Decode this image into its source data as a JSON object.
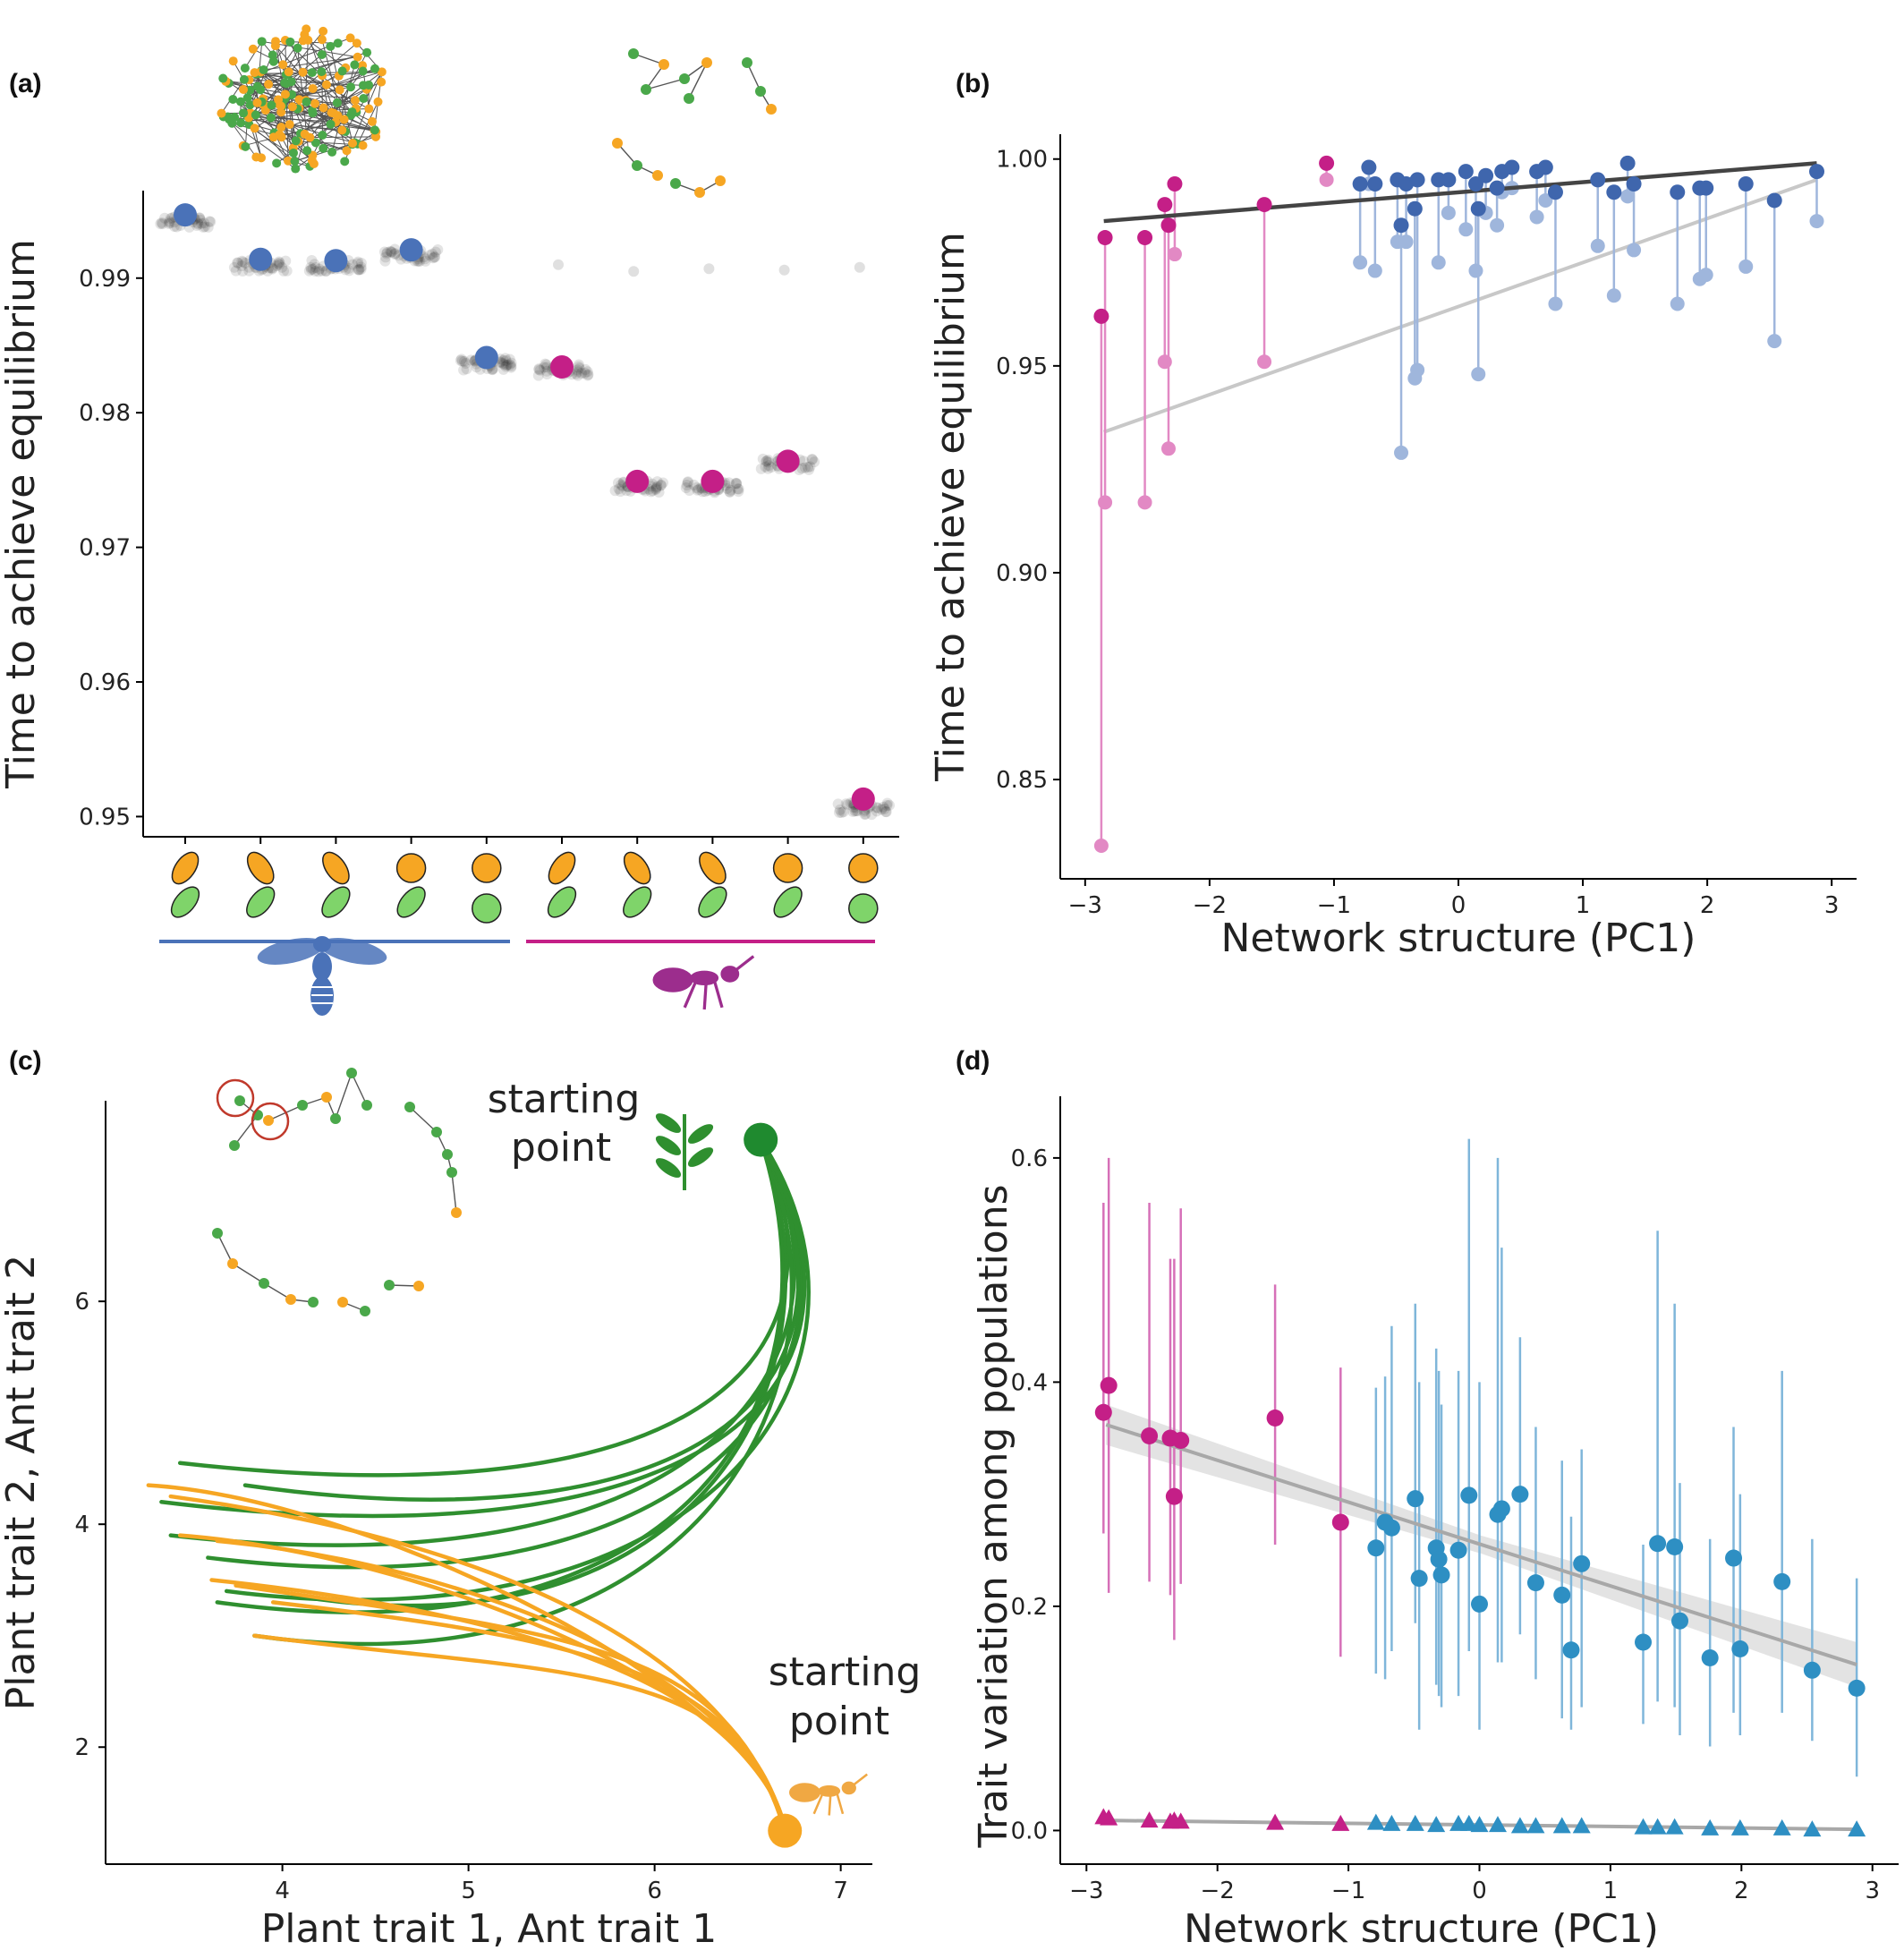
{
  "colors": {
    "bee": "#4a72b8",
    "ant": "#c41f87",
    "bee_light": "#9fb6dc",
    "ant_light": "#e289c4",
    "teal": "#2e8fc3",
    "plant": "#2f8f2f",
    "plant_light": "#7fd46a",
    "orange": "#f6a623",
    "fit_dark": "#444444",
    "fit_light": "#c8c8c8"
  },
  "chart_data": [
    {
      "panel": "(a)",
      "type": "scatter",
      "title": "",
      "xlabel": "",
      "ylabel": "Time to achieve equilibrium",
      "ylim": [
        0.9485,
        0.9965
      ],
      "yticks": [
        0.95,
        0.96,
        0.97,
        0.98,
        0.99
      ],
      "ytick_labels": [
        "0.95",
        "0.96",
        "0.97",
        "0.98",
        "0.99"
      ],
      "categories": [
        "1",
        "2",
        "3",
        "4",
        "5",
        "6",
        "7",
        "8",
        "9",
        "10"
      ],
      "groups": [
        {
          "name": "bee",
          "icon": "bee-icon",
          "categories": [
            "1",
            "2",
            "3",
            "4",
            "5"
          ]
        },
        {
          "name": "ant",
          "icon": "ant-icon",
          "categories": [
            "6",
            "7",
            "8",
            "9",
            "10"
          ]
        }
      ],
      "trait_icons": [
        {
          "top": "ellipse",
          "bottom": "ellipse"
        },
        {
          "top": "ellipse",
          "bottom": "ellipse"
        },
        {
          "top": "ellipse",
          "bottom": "ellipse"
        },
        {
          "top": "circle",
          "bottom": "ellipse"
        },
        {
          "top": "circle",
          "bottom": "circle"
        },
        {
          "top": "ellipse",
          "bottom": "ellipse"
        },
        {
          "top": "ellipse",
          "bottom": "ellipse"
        },
        {
          "top": "ellipse",
          "bottom": "ellipse"
        },
        {
          "top": "circle",
          "bottom": "ellipse"
        },
        {
          "top": "circle",
          "bottom": "circle"
        }
      ],
      "series": [
        {
          "group": "bee",
          "values": [
            0.9947,
            0.9914,
            0.9913,
            0.9921,
            0.9841
          ]
        },
        {
          "group": "ant",
          "values": [
            0.9834,
            0.9749,
            0.9749,
            0.9764,
            0.9513
          ]
        }
      ],
      "replicate_means": [
        0.9942,
        0.9909,
        0.9909,
        0.9917,
        0.9836,
        0.9832,
        0.9745,
        0.9745,
        0.9762,
        0.9506
      ],
      "faint_points": [
        {
          "cat": 6,
          "y": 0.991
        },
        {
          "cat": 7,
          "y": 0.9905
        },
        {
          "cat": 8,
          "y": 0.9907
        },
        {
          "cat": 9,
          "y": 0.9906
        },
        {
          "cat": 10,
          "y": 0.9908
        }
      ]
    },
    {
      "panel": "(b)",
      "type": "scatter",
      "title": "",
      "xlabel": "Network structure (PC1)",
      "ylabel": "Time to achieve equilibrium",
      "xlim": [
        -3.2,
        3.2
      ],
      "ylim": [
        0.826,
        1.006
      ],
      "xticks": [
        -3,
        -2,
        -1,
        0,
        1,
        2,
        3
      ],
      "xtick_labels": [
        "−3",
        "−2",
        "−1",
        "0",
        "1",
        "2",
        "3"
      ],
      "yticks": [
        0.85,
        0.9,
        0.95,
        1.0
      ],
      "ytick_labels": [
        "0.85",
        "0.90",
        "0.95",
        "1.00"
      ],
      "fits": [
        {
          "name": "dark",
          "x": [
            -2.85,
            2.88
          ],
          "y": [
            0.985,
            0.999
          ]
        },
        {
          "name": "light",
          "x": [
            -2.85,
            2.88
          ],
          "y": [
            0.934,
            0.995
          ]
        }
      ],
      "points": [
        {
          "x": -2.87,
          "hi": 0.962,
          "lo": 0.834,
          "g": "ant"
        },
        {
          "x": -2.84,
          "hi": 0.981,
          "lo": 0.917,
          "g": "ant"
        },
        {
          "x": -2.52,
          "hi": 0.981,
          "lo": 0.917,
          "g": "ant"
        },
        {
          "x": -2.36,
          "hi": 0.989,
          "lo": 0.951,
          "g": "ant"
        },
        {
          "x": -2.33,
          "hi": 0.984,
          "lo": 0.93,
          "g": "ant"
        },
        {
          "x": -2.28,
          "hi": 0.994,
          "lo": 0.977,
          "g": "ant"
        },
        {
          "x": -1.56,
          "hi": 0.989,
          "lo": 0.951,
          "g": "ant"
        },
        {
          "x": -1.06,
          "hi": 0.999,
          "lo": 0.995,
          "g": "ant"
        },
        {
          "x": -0.79,
          "hi": 0.994,
          "lo": 0.975,
          "g": "bee"
        },
        {
          "x": -0.72,
          "hi": 0.998,
          "lo": 0.994,
          "g": "bee"
        },
        {
          "x": -0.67,
          "hi": 0.994,
          "lo": 0.973,
          "g": "bee"
        },
        {
          "x": -0.49,
          "hi": 0.995,
          "lo": 0.98,
          "g": "bee"
        },
        {
          "x": -0.46,
          "hi": 0.984,
          "lo": 0.929,
          "g": "bee"
        },
        {
          "x": -0.42,
          "hi": 0.994,
          "lo": 0.98,
          "g": "bee"
        },
        {
          "x": -0.35,
          "hi": 0.988,
          "lo": 0.947,
          "g": "bee"
        },
        {
          "x": -0.33,
          "hi": 0.995,
          "lo": 0.949,
          "g": "bee"
        },
        {
          "x": -0.16,
          "hi": 0.995,
          "lo": 0.975,
          "g": "bee"
        },
        {
          "x": -0.08,
          "hi": 0.995,
          "lo": 0.987,
          "g": "bee"
        },
        {
          "x": 0.06,
          "hi": 0.997,
          "lo": 0.983,
          "g": "bee"
        },
        {
          "x": 0.14,
          "hi": 0.994,
          "lo": 0.973,
          "g": "bee"
        },
        {
          "x": 0.16,
          "hi": 0.988,
          "lo": 0.948,
          "g": "bee"
        },
        {
          "x": 0.22,
          "hi": 0.996,
          "lo": 0.987,
          "g": "bee"
        },
        {
          "x": 0.31,
          "hi": 0.993,
          "lo": 0.984,
          "g": "bee"
        },
        {
          "x": 0.35,
          "hi": 0.997,
          "lo": 0.992,
          "g": "bee"
        },
        {
          "x": 0.43,
          "hi": 0.998,
          "lo": 0.993,
          "g": "bee"
        },
        {
          "x": 0.63,
          "hi": 0.997,
          "lo": 0.986,
          "g": "bee"
        },
        {
          "x": 0.7,
          "hi": 0.998,
          "lo": 0.99,
          "g": "bee"
        },
        {
          "x": 0.78,
          "hi": 0.992,
          "lo": 0.965,
          "g": "bee"
        },
        {
          "x": 1.12,
          "hi": 0.995,
          "lo": 0.979,
          "g": "bee"
        },
        {
          "x": 1.25,
          "hi": 0.992,
          "lo": 0.967,
          "g": "bee"
        },
        {
          "x": 1.36,
          "hi": 0.999,
          "lo": 0.991,
          "g": "bee"
        },
        {
          "x": 1.41,
          "hi": 0.994,
          "lo": 0.978,
          "g": "bee"
        },
        {
          "x": 1.76,
          "hi": 0.992,
          "lo": 0.965,
          "g": "bee"
        },
        {
          "x": 1.94,
          "hi": 0.993,
          "lo": 0.971,
          "g": "bee"
        },
        {
          "x": 1.99,
          "hi": 0.993,
          "lo": 0.972,
          "g": "bee"
        },
        {
          "x": 2.31,
          "hi": 0.994,
          "lo": 0.974,
          "g": "bee"
        },
        {
          "x": 2.54,
          "hi": 0.99,
          "lo": 0.956,
          "g": "bee"
        },
        {
          "x": 2.88,
          "hi": 0.997,
          "lo": 0.985,
          "g": "bee"
        }
      ]
    },
    {
      "panel": "(c)",
      "type": "line",
      "title": "",
      "xlabel": "Plant trait 1, Ant trait 1",
      "ylabel": "Plant trait 2, Ant trait 2",
      "xlim": [
        3.05,
        7.17
      ],
      "ylim": [
        0.95,
        7.8
      ],
      "xticks": [
        4,
        5,
        6,
        7
      ],
      "xtick_labels": [
        "4",
        "5",
        "6",
        "7"
      ],
      "yticks": [
        2,
        4,
        6
      ],
      "ytick_labels": [
        "2",
        "4",
        "6"
      ],
      "start_plant": {
        "x": 6.57,
        "y": 7.45
      },
      "start_ant": {
        "x": 6.7,
        "y": 1.25
      },
      "plant_ends": [
        [
          3.45,
          4.55
        ],
        [
          3.4,
          3.9
        ],
        [
          3.6,
          3.7
        ],
        [
          3.7,
          3.4
        ],
        [
          4.1,
          3.35
        ],
        [
          3.85,
          3.0
        ],
        [
          3.8,
          4.35
        ],
        [
          3.35,
          4.2
        ],
        [
          3.65,
          3.3
        ]
      ],
      "ant_ends": [
        [
          3.28,
          4.35
        ],
        [
          3.45,
          3.9
        ],
        [
          3.65,
          3.85
        ],
        [
          3.62,
          3.5
        ],
        [
          3.95,
          3.3
        ],
        [
          3.85,
          3.0
        ],
        [
          3.4,
          4.25
        ],
        [
          3.75,
          3.45
        ]
      ],
      "annotations": [
        {
          "text_lines": [
            "starting",
            "point"
          ],
          "icon": "plant-icon",
          "anchor": "plant-start"
        },
        {
          "text_lines": [
            "starting",
            "point"
          ],
          "icon": "ant-icon",
          "anchor": "ant-start"
        }
      ]
    },
    {
      "panel": "(d)",
      "type": "scatter",
      "title": "",
      "xlabel": "Network structure (PC1)",
      "ylabel": "Trait variation among populations",
      "xlim": [
        -3.2,
        3.2
      ],
      "ylim": [
        -0.03,
        0.655
      ],
      "xticks": [
        -3,
        -2,
        -1,
        0,
        1,
        2,
        3
      ],
      "xtick_labels": [
        "−3",
        "−2",
        "−1",
        "0",
        "1",
        "2",
        "3"
      ],
      "yticks": [
        0.0,
        0.2,
        0.4,
        0.6
      ],
      "ytick_labels": [
        "0.0",
        "0.2",
        "0.4",
        "0.6"
      ],
      "fit_circles": {
        "x": [
          -2.85,
          2.88
        ],
        "y": [
          0.362,
          0.148
        ]
      },
      "fit_triangles": {
        "x": [
          -2.85,
          2.88
        ],
        "y": [
          0.009,
          0.001
        ]
      },
      "circles": [
        {
          "x": -2.87,
          "y": 0.373,
          "lo": 0.265,
          "hi": 0.56,
          "g": "ant"
        },
        {
          "x": -2.83,
          "y": 0.397,
          "lo": 0.212,
          "hi": 0.6,
          "g": "ant"
        },
        {
          "x": -2.52,
          "y": 0.352,
          "lo": 0.222,
          "hi": 0.56,
          "g": "ant"
        },
        {
          "x": -2.36,
          "y": 0.35,
          "lo": 0.21,
          "hi": 0.51,
          "g": "ant"
        },
        {
          "x": -2.33,
          "y": 0.298,
          "lo": 0.17,
          "hi": 0.51,
          "g": "ant"
        },
        {
          "x": -2.28,
          "y": 0.348,
          "lo": 0.22,
          "hi": 0.555,
          "g": "ant"
        },
        {
          "x": -1.56,
          "y": 0.368,
          "lo": 0.255,
          "hi": 0.487,
          "g": "ant"
        },
        {
          "x": -1.06,
          "y": 0.275,
          "lo": 0.155,
          "hi": 0.413,
          "g": "ant"
        },
        {
          "x": -0.79,
          "y": 0.252,
          "lo": 0.14,
          "hi": 0.395,
          "g": "bee"
        },
        {
          "x": -0.72,
          "y": 0.275,
          "lo": 0.135,
          "hi": 0.405,
          "g": "bee"
        },
        {
          "x": -0.67,
          "y": 0.27,
          "lo": 0.16,
          "hi": 0.45,
          "g": "bee"
        },
        {
          "x": -0.49,
          "y": 0.296,
          "lo": 0.185,
          "hi": 0.47,
          "g": "bee"
        },
        {
          "x": -0.46,
          "y": 0.225,
          "lo": 0.09,
          "hi": 0.4,
          "g": "bee"
        },
        {
          "x": -0.33,
          "y": 0.252,
          "lo": 0.13,
          "hi": 0.43,
          "g": "bee"
        },
        {
          "x": -0.31,
          "y": 0.242,
          "lo": 0.12,
          "hi": 0.41,
          "g": "bee"
        },
        {
          "x": -0.29,
          "y": 0.228,
          "lo": 0.11,
          "hi": 0.38,
          "g": "bee"
        },
        {
          "x": -0.16,
          "y": 0.25,
          "lo": 0.12,
          "hi": 0.41,
          "g": "bee"
        },
        {
          "x": -0.08,
          "y": 0.299,
          "lo": 0.16,
          "hi": 0.617,
          "g": "bee"
        },
        {
          "x": 0.0,
          "y": 0.202,
          "lo": 0.09,
          "hi": 0.4,
          "g": "bee"
        },
        {
          "x": 0.14,
          "y": 0.282,
          "lo": 0.15,
          "hi": 0.6,
          "g": "bee"
        },
        {
          "x": 0.17,
          "y": 0.287,
          "lo": 0.15,
          "hi": 0.52,
          "g": "bee"
        },
        {
          "x": 0.31,
          "y": 0.3,
          "lo": 0.175,
          "hi": 0.44,
          "g": "bee"
        },
        {
          "x": 0.43,
          "y": 0.221,
          "lo": 0.135,
          "hi": 0.36,
          "g": "bee"
        },
        {
          "x": 0.63,
          "y": 0.21,
          "lo": 0.1,
          "hi": 0.33,
          "g": "bee"
        },
        {
          "x": 0.7,
          "y": 0.161,
          "lo": 0.09,
          "hi": 0.28,
          "g": "bee"
        },
        {
          "x": 0.78,
          "y": 0.238,
          "lo": 0.11,
          "hi": 0.34,
          "g": "bee"
        },
        {
          "x": 1.25,
          "y": 0.168,
          "lo": 0.095,
          "hi": 0.255,
          "g": "bee"
        },
        {
          "x": 1.36,
          "y": 0.256,
          "lo": 0.115,
          "hi": 0.535,
          "g": "bee"
        },
        {
          "x": 1.49,
          "y": 0.253,
          "lo": 0.11,
          "hi": 0.47,
          "g": "bee"
        },
        {
          "x": 1.53,
          "y": 0.187,
          "lo": 0.085,
          "hi": 0.31,
          "g": "bee"
        },
        {
          "x": 1.76,
          "y": 0.154,
          "lo": 0.075,
          "hi": 0.26,
          "g": "bee"
        },
        {
          "x": 1.94,
          "y": 0.243,
          "lo": 0.105,
          "hi": 0.36,
          "g": "bee"
        },
        {
          "x": 1.99,
          "y": 0.162,
          "lo": 0.085,
          "hi": 0.3,
          "g": "bee"
        },
        {
          "x": 2.31,
          "y": 0.222,
          "lo": 0.105,
          "hi": 0.41,
          "g": "bee"
        },
        {
          "x": 2.54,
          "y": 0.143,
          "lo": 0.08,
          "hi": 0.26,
          "g": "bee"
        },
        {
          "x": 2.88,
          "y": 0.127,
          "lo": 0.048,
          "hi": 0.225,
          "g": "bee"
        }
      ],
      "triangles": [
        {
          "x": -2.87,
          "y": 0.012,
          "g": "ant"
        },
        {
          "x": -2.83,
          "y": 0.011,
          "g": "ant"
        },
        {
          "x": -2.52,
          "y": 0.009,
          "g": "ant"
        },
        {
          "x": -2.36,
          "y": 0.008,
          "g": "ant"
        },
        {
          "x": -2.33,
          "y": 0.009,
          "g": "ant"
        },
        {
          "x": -2.28,
          "y": 0.008,
          "g": "ant"
        },
        {
          "x": -1.56,
          "y": 0.007,
          "g": "ant"
        },
        {
          "x": -1.06,
          "y": 0.006,
          "g": "ant"
        },
        {
          "x": -0.79,
          "y": 0.007,
          "g": "bee"
        },
        {
          "x": -0.67,
          "y": 0.006,
          "g": "bee"
        },
        {
          "x": -0.49,
          "y": 0.006,
          "g": "bee"
        },
        {
          "x": -0.33,
          "y": 0.005,
          "g": "bee"
        },
        {
          "x": -0.16,
          "y": 0.006,
          "g": "bee"
        },
        {
          "x": -0.08,
          "y": 0.006,
          "g": "bee"
        },
        {
          "x": 0.0,
          "y": 0.005,
          "g": "bee"
        },
        {
          "x": 0.14,
          "y": 0.005,
          "g": "bee"
        },
        {
          "x": 0.31,
          "y": 0.004,
          "g": "bee"
        },
        {
          "x": 0.43,
          "y": 0.004,
          "g": "bee"
        },
        {
          "x": 0.63,
          "y": 0.004,
          "g": "bee"
        },
        {
          "x": 0.78,
          "y": 0.004,
          "g": "bee"
        },
        {
          "x": 1.25,
          "y": 0.003,
          "g": "bee"
        },
        {
          "x": 1.36,
          "y": 0.003,
          "g": "bee"
        },
        {
          "x": 1.49,
          "y": 0.003,
          "g": "bee"
        },
        {
          "x": 1.76,
          "y": 0.002,
          "g": "bee"
        },
        {
          "x": 1.99,
          "y": 0.002,
          "g": "bee"
        },
        {
          "x": 2.31,
          "y": 0.002,
          "g": "bee"
        },
        {
          "x": 2.54,
          "y": 0.001,
          "g": "bee"
        },
        {
          "x": 2.88,
          "y": 0.001,
          "g": "bee"
        }
      ]
    }
  ]
}
